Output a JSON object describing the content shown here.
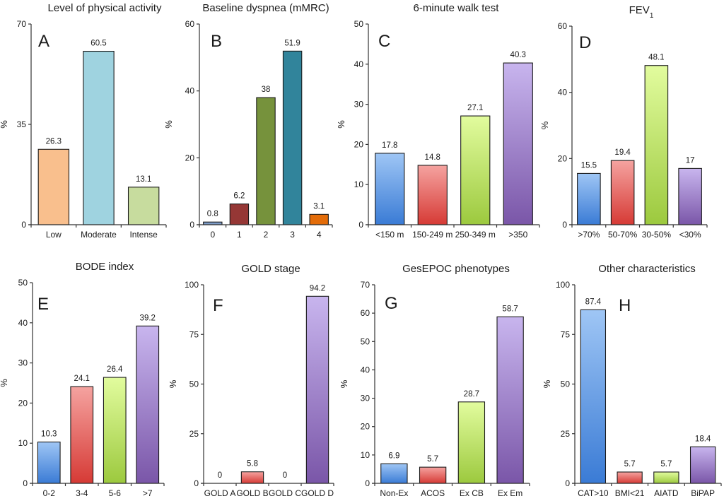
{
  "figure": {
    "description": "COPD patient characteristics, 8 bar chart panels"
  },
  "chart_data": [
    {
      "id": "A",
      "type": "bar",
      "panel_letter": "A",
      "title": "Level of physical activity",
      "xlabel": "",
      "ylabel": "%",
      "ylim": [
        0,
        70
      ],
      "yticks": [
        0,
        35,
        70
      ],
      "categories": [
        "Low",
        "Moderate",
        "Intense"
      ],
      "values": [
        26.3,
        60.5,
        13.1
      ],
      "value_labels": [
        "26.3",
        "60.5",
        "13.1"
      ],
      "colors": [
        "solid:#f9bf8d",
        "solid:#9fd3e0",
        "solid:#c7dc9e"
      ]
    },
    {
      "id": "B",
      "type": "bar",
      "panel_letter": "B",
      "title": "Baseline dyspnea (mMRC)",
      "xlabel": "",
      "ylabel": "%",
      "ylim": [
        0,
        60
      ],
      "yticks": [
        0,
        20,
        40,
        60
      ],
      "categories": [
        "0",
        "1",
        "2",
        "3",
        "4"
      ],
      "values": [
        0.8,
        6.2,
        38,
        51.9,
        3.1
      ],
      "value_labels": [
        "0.8",
        "6.2",
        "38",
        "51.9",
        "3.1"
      ],
      "colors": [
        "solid:#7c9bc6",
        "solid:#953735",
        "solid:#76923c",
        "solid:#31849b",
        "solid:#e36c09"
      ]
    },
    {
      "id": "C",
      "type": "bar",
      "panel_letter": "C",
      "title": "6-minute walk test",
      "xlabel": "",
      "ylabel": "%",
      "ylim": [
        0,
        50
      ],
      "yticks": [
        0,
        10,
        20,
        30,
        40,
        50
      ],
      "categories": [
        "<150 m",
        "150-249 m",
        "250-349 m",
        ">350"
      ],
      "values": [
        17.8,
        14.8,
        27.1,
        40.3
      ],
      "value_labels": [
        "17.8",
        "14.8",
        "27.1",
        "40.3"
      ],
      "colors": [
        "grad:blue",
        "grad:red",
        "grad:green",
        "grad:purple"
      ]
    },
    {
      "id": "D",
      "type": "bar",
      "panel_letter": "D",
      "title": "FEV",
      "title_subscript": "1",
      "xlabel": "",
      "ylabel": "%",
      "ylim": [
        0,
        60
      ],
      "yticks": [
        0,
        20,
        40,
        60
      ],
      "categories": [
        ">70%",
        "50-70%",
        "30-50%",
        "<30%"
      ],
      "values": [
        15.5,
        19.4,
        48.1,
        17
      ],
      "value_labels": [
        "15.5",
        "19.4",
        "48.1",
        "17"
      ],
      "colors": [
        "grad:blue",
        "grad:red",
        "grad:green",
        "grad:purple"
      ]
    },
    {
      "id": "E",
      "type": "bar",
      "panel_letter": "E",
      "title": "BODE index",
      "xlabel": "",
      "ylabel": "%",
      "ylim": [
        0,
        50
      ],
      "yticks": [
        0,
        10,
        20,
        30,
        40,
        50
      ],
      "categories": [
        "0-2",
        "3-4",
        "5-6",
        ">7"
      ],
      "values": [
        10.3,
        24.1,
        26.4,
        39.2
      ],
      "value_labels": [
        "10.3",
        "24.1",
        "26.4",
        "39.2"
      ],
      "colors": [
        "grad:blue",
        "grad:red",
        "grad:green",
        "grad:purple"
      ]
    },
    {
      "id": "F",
      "type": "bar",
      "panel_letter": "F",
      "title": "GOLD stage",
      "xlabel": "",
      "ylabel": "%",
      "ylim": [
        0,
        100
      ],
      "yticks": [
        0,
        25,
        50,
        75,
        100
      ],
      "categories": [
        "GOLD A",
        "GOLD B",
        "GOLD C",
        "GOLD D"
      ],
      "values": [
        0,
        5.8,
        0,
        94.2
      ],
      "value_labels": [
        "0",
        "5.8",
        "0",
        "94.2"
      ],
      "colors": [
        "grad:blue",
        "grad:red",
        "grad:green",
        "grad:purple"
      ]
    },
    {
      "id": "G",
      "type": "bar",
      "panel_letter": "G",
      "title": "GesEPOC phenotypes",
      "xlabel": "",
      "ylabel": "%",
      "ylim": [
        0,
        70
      ],
      "yticks": [
        0,
        10,
        20,
        30,
        40,
        50,
        60,
        70
      ],
      "categories": [
        "Non-Ex",
        "ACOS",
        "Ex CB",
        "Ex Em"
      ],
      "values": [
        6.9,
        5.7,
        28.7,
        58.7
      ],
      "value_labels": [
        "6.9",
        "5.7",
        "28.7",
        "58.7"
      ],
      "colors": [
        "grad:blue",
        "grad:red",
        "grad:green",
        "grad:purple"
      ]
    },
    {
      "id": "H",
      "type": "bar",
      "panel_letter": "H",
      "title": "Other characteristics",
      "xlabel": "",
      "ylabel": "%",
      "ylim": [
        0,
        100
      ],
      "yticks": [
        0,
        25,
        50,
        75,
        100
      ],
      "categories": [
        "CAT>10",
        "BMI<21",
        "AIATD",
        "BiPAP"
      ],
      "values": [
        87.4,
        5.7,
        5.7,
        18.4
      ],
      "value_labels": [
        "87.4",
        "5.7",
        "5.7",
        "18.4"
      ],
      "colors": [
        "grad:blue",
        "grad:red",
        "grad:green",
        "grad:purple"
      ]
    }
  ],
  "gradients": {
    "blue": {
      "top": "#9fc6f5",
      "bottom": "#3a7bd5"
    },
    "red": {
      "top": "#f5a3a0",
      "bottom": "#d63a35"
    },
    "green": {
      "top": "#e2fc9e",
      "bottom": "#9cc93e"
    },
    "purple": {
      "top": "#c8b5ee",
      "bottom": "#7a56a8"
    }
  }
}
